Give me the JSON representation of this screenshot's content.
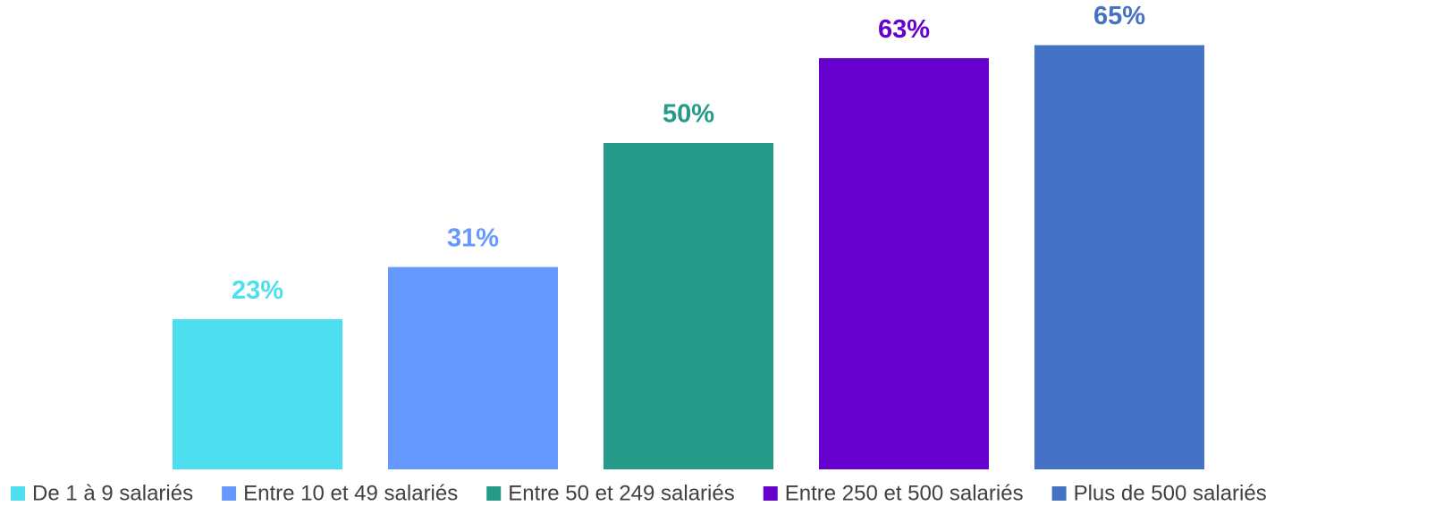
{
  "chart_data": {
    "type": "bar",
    "categories": [
      null
    ],
    "series": [
      {
        "name": "De 1 à 9 salariés",
        "color": "#4ddfef",
        "values": [
          23
        ],
        "value_labels": [
          "23%"
        ]
      },
      {
        "name": "Entre 10 et 49 salariés",
        "color": "#6699ff",
        "values": [
          31
        ],
        "value_labels": [
          "31%"
        ]
      },
      {
        "name": "Entre 50 et 249 salariés",
        "color": "#269a88",
        "values": [
          50
        ],
        "value_labels": [
          "50%"
        ]
      },
      {
        "name": "Entre 250 et 500 salariés",
        "color": "#6600cc",
        "values": [
          63
        ],
        "value_labels": [
          "63%"
        ]
      },
      {
        "name": "Plus de 500 salariés",
        "color": "#4472c4",
        "values": [
          65
        ],
        "value_labels": [
          "65%"
        ]
      }
    ],
    "ylim": [
      0,
      70
    ],
    "legend": "bottom"
  }
}
